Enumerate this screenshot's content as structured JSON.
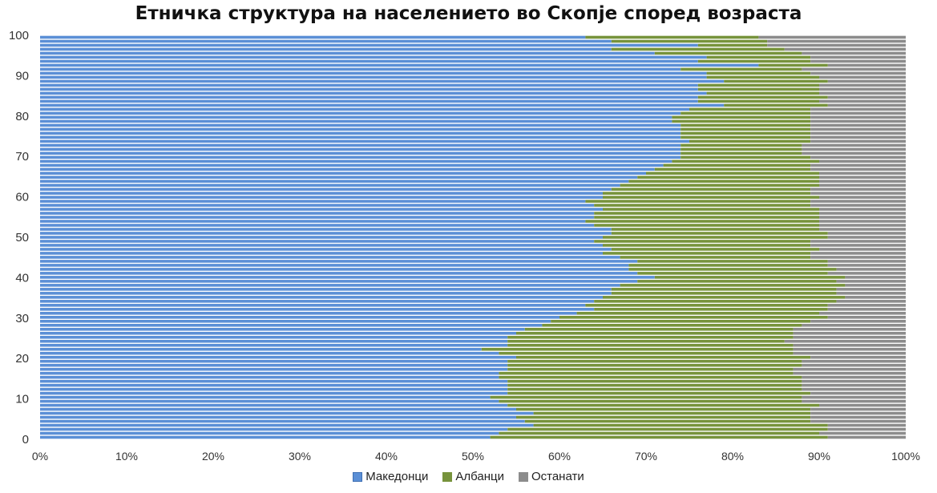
{
  "chart_data": {
    "type": "bar",
    "orientation": "horizontal",
    "stacked": "percent",
    "title": "Етничка структура на населението во Скопје според возраста",
    "y_ticks": [
      "0",
      "10",
      "20",
      "30",
      "40",
      "50",
      "60",
      "70",
      "80",
      "90",
      "100"
    ],
    "x_ticks": [
      "0%",
      "10%",
      "20%",
      "30%",
      "40%",
      "50%",
      "60%",
      "70%",
      "80%",
      "90%",
      "100%"
    ],
    "xlim": [
      0,
      100
    ],
    "ylim": [
      0,
      100
    ],
    "legend_position": "bottom",
    "series": [
      {
        "name": "Македонци",
        "color": "#5b8fd6",
        "values": [
          52,
          53,
          54,
          57,
          56,
          55,
          57,
          55,
          54,
          53,
          52,
          54,
          54,
          54,
          54,
          53,
          53,
          54,
          54,
          54,
          55,
          53,
          51,
          54,
          54,
          54,
          55,
          56,
          58,
          59,
          60,
          62,
          64,
          63,
          64,
          65,
          66,
          66,
          67,
          69,
          71,
          69,
          68,
          68,
          69,
          67,
          65,
          66,
          65,
          64,
          65,
          66,
          66,
          64,
          63,
          64,
          64,
          65,
          64,
          63,
          65,
          65,
          66,
          67,
          68,
          69,
          70,
          71,
          72,
          73,
          74,
          74,
          74,
          74,
          75,
          74,
          74,
          74,
          74,
          73,
          73,
          74,
          75,
          79,
          76,
          76,
          77,
          76,
          76,
          79,
          77,
          77,
          74,
          83,
          76,
          77,
          71,
          66,
          76,
          66,
          63
        ]
      },
      {
        "name": "Албанци",
        "color": "#77933c",
        "values": [
          39,
          37,
          37,
          34,
          33,
          34,
          32,
          34,
          36,
          35,
          36,
          35,
          34,
          34,
          34,
          35,
          34,
          33,
          34,
          34,
          34,
          34,
          36,
          33,
          32,
          33,
          32,
          31,
          30,
          30,
          31,
          28,
          27,
          28,
          28,
          28,
          26,
          26,
          26,
          23,
          22,
          22,
          24,
          23,
          22,
          22,
          24,
          24,
          24,
          25,
          26,
          25,
          24,
          26,
          27,
          26,
          26,
          25,
          25,
          26,
          25,
          24,
          23,
          23,
          22,
          21,
          20,
          18,
          17,
          17,
          15,
          14,
          14,
          14,
          14,
          15,
          15,
          15,
          15,
          16,
          16,
          15,
          14,
          12,
          14,
          15,
          13,
          14,
          14,
          12,
          13,
          12,
          14,
          8,
          13,
          12,
          17,
          20,
          8,
          18,
          20
        ]
      },
      {
        "name": "Останати",
        "color": "#8c8c8c",
        "values": [
          9,
          10,
          9,
          9,
          11,
          11,
          11,
          11,
          10,
          12,
          12,
          11,
          12,
          12,
          12,
          12,
          13,
          13,
          12,
          12,
          11,
          13,
          13,
          13,
          14,
          13,
          13,
          13,
          12,
          11,
          9,
          10,
          9,
          9,
          8,
          7,
          8,
          8,
          7,
          8,
          7,
          9,
          8,
          9,
          9,
          11,
          11,
          10,
          11,
          11,
          9,
          9,
          10,
          10,
          10,
          10,
          10,
          10,
          11,
          11,
          10,
          11,
          11,
          10,
          10,
          10,
          10,
          11,
          11,
          10,
          11,
          12,
          12,
          12,
          11,
          11,
          11,
          11,
          11,
          11,
          11,
          11,
          11,
          9,
          10,
          9,
          10,
          10,
          10,
          9,
          10,
          11,
          12,
          9,
          11,
          11,
          12,
          14,
          16,
          16,
          17
        ]
      }
    ]
  }
}
